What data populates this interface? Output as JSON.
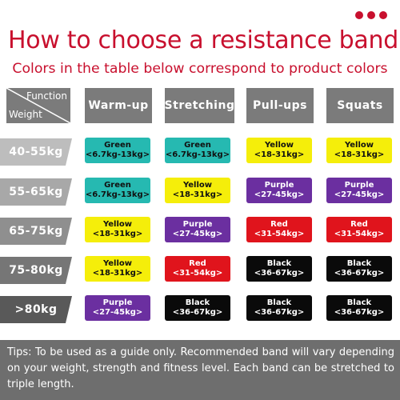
{
  "title": "How to choose a resistance band",
  "subtitle": "Colors in the table below correspond to product colors",
  "corner": {
    "function_label": "Function",
    "weight_label": "Weight"
  },
  "headers": [
    "Warm-up",
    "Stretching",
    "Pull-ups",
    "Squats"
  ],
  "colors": {
    "accent": "#c8102e",
    "header_bg": "#7b7b7b",
    "tips_bg": "#6e6e6e",
    "Green": "#26b9b1",
    "Yellow": "#f5ee0a",
    "Purple": "#6b2fa0",
    "Red": "#e0141c",
    "Black": "#0a0a0a"
  },
  "rows": [
    {
      "weight": "40-55kg",
      "weight_color": "#bdbdbd",
      "bands": [
        {
          "color": "Green",
          "range": "<6.7kg-13kg>"
        },
        {
          "color": "Green",
          "range": "<6.7kg-13kg>"
        },
        {
          "color": "Yellow",
          "range": "<18-31kg>"
        },
        {
          "color": "Yellow",
          "range": "<18-31kg>"
        }
      ]
    },
    {
      "weight": "55-65kg",
      "weight_color": "#a8a8a8",
      "bands": [
        {
          "color": "Green",
          "range": "<6.7kg-13kg>"
        },
        {
          "color": "Yellow",
          "range": "<18-31kg>"
        },
        {
          "color": "Purple",
          "range": "<27-45kg>"
        },
        {
          "color": "Purple",
          "range": "<27-45kg>"
        }
      ]
    },
    {
      "weight": "65-75kg",
      "weight_color": "#8f8f8f",
      "bands": [
        {
          "color": "Yellow",
          "range": "<18-31kg>"
        },
        {
          "color": "Purple",
          "range": "<27-45kg>"
        },
        {
          "color": "Red",
          "range": "<31-54kg>"
        },
        {
          "color": "Red",
          "range": "<31-54kg>"
        }
      ]
    },
    {
      "weight": "75-80kg",
      "weight_color": "#767676",
      "bands": [
        {
          "color": "Yellow",
          "range": "<18-31kg>"
        },
        {
          "color": "Red",
          "range": "<31-54kg>"
        },
        {
          "color": "Black",
          "range": "<36-67kg>"
        },
        {
          "color": "Black",
          "range": "<36-67kg>"
        }
      ]
    },
    {
      "weight": ">80kg",
      "weight_color": "#595959",
      "bands": [
        {
          "color": "Purple",
          "range": "<27-45kg>"
        },
        {
          "color": "Black",
          "range": "<36-67kg>"
        },
        {
          "color": "Black",
          "range": "<36-67kg>"
        },
        {
          "color": "Black",
          "range": "<36-67kg>"
        }
      ]
    }
  ],
  "tips": "Tips: To be used as a guide only. Recommended band will vary depending on your weight, strength and fitness level. Each band can be stretched to triple length."
}
